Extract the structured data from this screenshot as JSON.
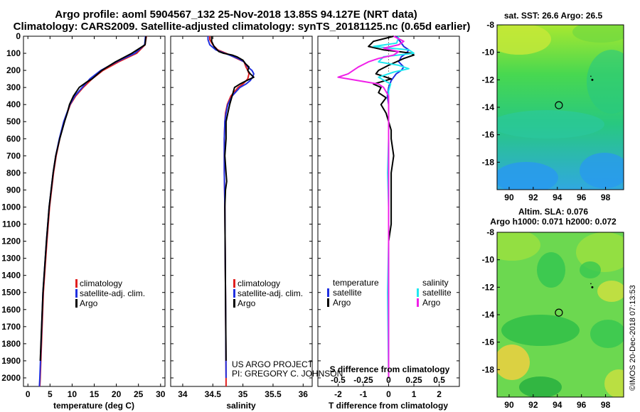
{
  "title": {
    "line1": "Argo profile: aoml 5904567_132 25-Nov-2018 13.85S 94.127E (NRT data)",
    "line2": "Climatology: CARS2009. Satellite-adjusted climatology: synTS_20181125.nc (0.65d earlier)"
  },
  "colors": {
    "climatology": "#e02020",
    "satellite": "#2030e0",
    "argo": "#000000",
    "salinity_satellite": "#20e8f0",
    "salinity_argo": "#f020e8"
  },
  "depth_axis": {
    "ylim": [
      0,
      2050
    ],
    "ticks": [
      "0",
      "100",
      "200",
      "300",
      "400",
      "500",
      "600",
      "700",
      "800",
      "900",
      "1000",
      "1100",
      "1200",
      "1300",
      "1400",
      "1500",
      "1600",
      "1700",
      "1800",
      "1900",
      "2000"
    ]
  },
  "legend": {
    "climatology": "climatology",
    "satellite_adj": "satellite-adj. clim.",
    "argo": "Argo",
    "temperature": "temperature",
    "salinity": "salinity",
    "satellite": "satellite"
  },
  "project": {
    "line1": "US ARGO PROJECT",
    "line2": "PI: GREGORY C. JOHNSON"
  },
  "watermark": "©IMOS 20-Dec-2018 07:13:53",
  "chart_data": [
    {
      "type": "line",
      "title": "Temperature profile",
      "xlabel": "temperature (deg C)",
      "ylabel": "depth",
      "xlim": [
        -1,
        31
      ],
      "ylim": [
        2050,
        0
      ],
      "xticks": [
        "0",
        "5",
        "10",
        "15",
        "20",
        "25",
        "30"
      ],
      "series": [
        {
          "name": "climatology",
          "color_key": "climatology",
          "depth": [
            0,
            50,
            100,
            150,
            200,
            250,
            300,
            350,
            400,
            500,
            600,
            700,
            800,
            1000,
            1200,
            1500,
            2000,
            2050
          ],
          "values": [
            26.8,
            26.5,
            24.6,
            20.5,
            17.0,
            14.5,
            12.5,
            10.8,
            9.6,
            8.2,
            7.2,
            6.4,
            5.8,
            4.9,
            4.3,
            3.5,
            2.8,
            2.7
          ]
        },
        {
          "name": "satellite-adj. clim.",
          "color_key": "satellite",
          "depth": [
            0,
            50,
            100,
            150,
            200,
            250,
            300,
            350,
            400,
            500,
            600,
            700,
            800,
            1000,
            1200,
            1500,
            2000,
            2050
          ],
          "values": [
            26.6,
            26.4,
            24.2,
            20.0,
            16.5,
            14.0,
            12.3,
            10.6,
            9.5,
            8.1,
            7.1,
            6.3,
            5.7,
            4.8,
            4.2,
            3.4,
            2.7,
            2.6
          ]
        },
        {
          "name": "Argo",
          "color_key": "argo",
          "depth": [
            0,
            50,
            100,
            150,
            200,
            250,
            270,
            300,
            350,
            400,
            450,
            500,
            600,
            700,
            800,
            1000,
            1200,
            1500,
            1900
          ],
          "values": [
            26.7,
            26.5,
            23.5,
            19.8,
            16.7,
            14.5,
            13.2,
            11.6,
            10.3,
            9.4,
            8.9,
            8.3,
            7.2,
            6.3,
            5.7,
            4.8,
            4.2,
            3.4,
            2.8
          ]
        }
      ]
    },
    {
      "type": "line",
      "title": "Salinity profile",
      "xlabel": "salinity",
      "ylabel": "depth",
      "xlim": [
        33.8,
        36.15
      ],
      "ylim": [
        2050,
        0
      ],
      "xticks": [
        "34",
        "34.5",
        "35",
        "35.5",
        "36"
      ],
      "series": [
        {
          "name": "climatology",
          "color_key": "climatology",
          "depth": [
            0,
            20,
            50,
            80,
            100,
            130,
            150,
            180,
            200,
            220,
            250,
            280,
            300,
            350,
            400,
            450,
            500,
            600,
            800,
            1000,
            1500,
            2000,
            2050
          ],
          "values": [
            34.45,
            34.45,
            34.5,
            34.58,
            34.72,
            34.9,
            35.02,
            35.05,
            35.08,
            35.1,
            35.08,
            35.0,
            34.92,
            34.8,
            34.74,
            34.71,
            34.7,
            34.69,
            34.69,
            34.7,
            34.71,
            34.72,
            34.72
          ]
        },
        {
          "name": "satellite-adj. clim.",
          "color_key": "satellite",
          "depth": [
            0,
            20,
            50,
            80,
            100,
            130,
            150,
            180,
            200,
            220,
            240,
            260,
            280,
            300,
            350,
            400,
            450,
            500,
            600,
            800,
            1000,
            1500,
            2000
          ],
          "values": [
            34.42,
            34.42,
            34.45,
            34.55,
            34.7,
            34.92,
            35.02,
            35.08,
            35.15,
            35.18,
            35.16,
            35.12,
            35.05,
            34.95,
            34.82,
            34.75,
            34.72,
            34.7,
            34.69,
            34.69,
            34.7,
            34.71,
            34.72
          ]
        },
        {
          "name": "Argo",
          "color_key": "argo",
          "depth": [
            0,
            30,
            60,
            90,
            100,
            110,
            120,
            140,
            160,
            180,
            200,
            220,
            240,
            260,
            280,
            300,
            350,
            400,
            450,
            500,
            600,
            700,
            800,
            850,
            900,
            1000,
            1500,
            1900
          ],
          "values": [
            34.48,
            34.48,
            34.52,
            34.6,
            34.68,
            34.82,
            34.9,
            35.0,
            35.04,
            35.1,
            35.08,
            35.12,
            35.18,
            35.06,
            34.95,
            34.86,
            34.82,
            34.78,
            34.75,
            34.72,
            34.72,
            34.7,
            34.72,
            34.73,
            34.71,
            34.7,
            34.71,
            34.72
          ]
        }
      ]
    },
    {
      "type": "line",
      "title": "Difference from climatology",
      "xlabel": "T difference from climatology",
      "x2label": "S difference from climatology",
      "ylabel": "depth",
      "xlim": [
        -2.8,
        2.8
      ],
      "x2lim": [
        -0.7,
        0.7
      ],
      "ylim": [
        2050,
        0
      ],
      "xticks": [
        "-2",
        "-1",
        "0",
        "1",
        "2"
      ],
      "x2ticks": [
        "-0.5",
        "-0.25",
        "0",
        "0.25",
        "0.5"
      ],
      "series": [
        {
          "name": "temperature satellite",
          "color_key": "satellite",
          "depth": [
            0,
            40,
            60,
            80,
            100,
            120,
            150,
            180,
            200,
            220,
            240,
            260,
            300,
            350,
            400,
            500,
            600,
            700,
            800,
            1000,
            1200,
            1500,
            2000
          ],
          "values": [
            0.3,
            0.5,
            0.6,
            0.8,
            0.7,
            0.5,
            0.4,
            0.6,
            0.5,
            0.3,
            0.2,
            0.1,
            0.0,
            -0.05,
            0.0,
            0.0,
            0.0,
            0.0,
            0.0,
            0.0,
            0.0,
            0.0,
            0.0
          ]
        },
        {
          "name": "temperature Argo",
          "color_key": "argo",
          "depth": [
            0,
            30,
            60,
            80,
            90,
            100,
            110,
            130,
            150,
            170,
            200,
            220,
            250,
            280,
            300,
            330,
            360,
            400,
            450,
            500,
            550,
            600,
            700,
            800,
            900,
            1000,
            1100,
            1200,
            1500,
            2000
          ],
          "values": [
            0.2,
            -0.6,
            -0.8,
            -0.2,
            0.4,
            0.9,
            1.0,
            0.6,
            0.3,
            0.0,
            -0.4,
            -0.5,
            0.1,
            -0.6,
            -0.3,
            -0.4,
            -0.1,
            -0.3,
            -0.1,
            0.0,
            0.1,
            0.1,
            0.2,
            0.1,
            0.1,
            0.1,
            0.1,
            0.0,
            0.0,
            0.0
          ]
        },
        {
          "name": "salinity satellite",
          "color_key": "salinity_satellite",
          "depth": [
            0,
            40,
            60,
            80,
            100,
            120,
            150,
            170,
            190,
            210,
            240,
            280,
            320,
            400,
            500,
            600,
            800,
            1000,
            1200,
            1500,
            2000
          ],
          "values": [
            0.1,
            0.08,
            -0.15,
            0.2,
            0.25,
            -0.05,
            -0.1,
            0.1,
            0.2,
            0.05,
            -0.1,
            0.02,
            0.0,
            0.0,
            0.0,
            0.0,
            -0.01,
            0.0,
            0.0,
            -0.01,
            0.0
          ]
        },
        {
          "name": "salinity Argo",
          "color_key": "salinity_argo",
          "depth": [
            0,
            30,
            50,
            70,
            90,
            110,
            130,
            150,
            180,
            200,
            220,
            240,
            260,
            280,
            300,
            350,
            400,
            500,
            600,
            800,
            1000,
            1500,
            2000
          ],
          "values": [
            0.05,
            0.15,
            0.1,
            -0.05,
            0.1,
            0.05,
            -0.1,
            -0.2,
            -0.3,
            -0.35,
            -0.4,
            -0.5,
            -0.3,
            -0.1,
            -0.05,
            0.0,
            0.0,
            0.0,
            0.0,
            0.0,
            0.0,
            0.0,
            0.0
          ]
        }
      ]
    },
    {
      "type": "heatmap",
      "title": "sat. SST: 26.6 Argo: 26.5",
      "xlim": [
        89,
        99.5
      ],
      "ylim": [
        -20,
        -8
      ],
      "xticks": [
        "90",
        "92",
        "94",
        "96",
        "98"
      ],
      "yticks": [
        "-8",
        "-10",
        "-12",
        "-14",
        "-16",
        "-18"
      ],
      "profile_marker": {
        "lon": 94.127,
        "lat": -13.85
      },
      "float_track": {
        "lon": 96.9,
        "lat": -12.0
      }
    },
    {
      "type": "heatmap",
      "title": "Altim. SLA: 0.076",
      "subtitle": "Argo h1000: 0.071 h2000: 0.072",
      "xlim": [
        89,
        99.5
      ],
      "ylim": [
        -20,
        -8
      ],
      "xticks": [
        "90",
        "92",
        "94",
        "96",
        "98"
      ],
      "yticks": [
        "-8",
        "-10",
        "-12",
        "-14",
        "-16",
        "-18"
      ],
      "profile_marker": {
        "lon": 94.127,
        "lat": -13.85
      },
      "float_track": {
        "lon": 96.9,
        "lat": -12.0
      }
    }
  ]
}
